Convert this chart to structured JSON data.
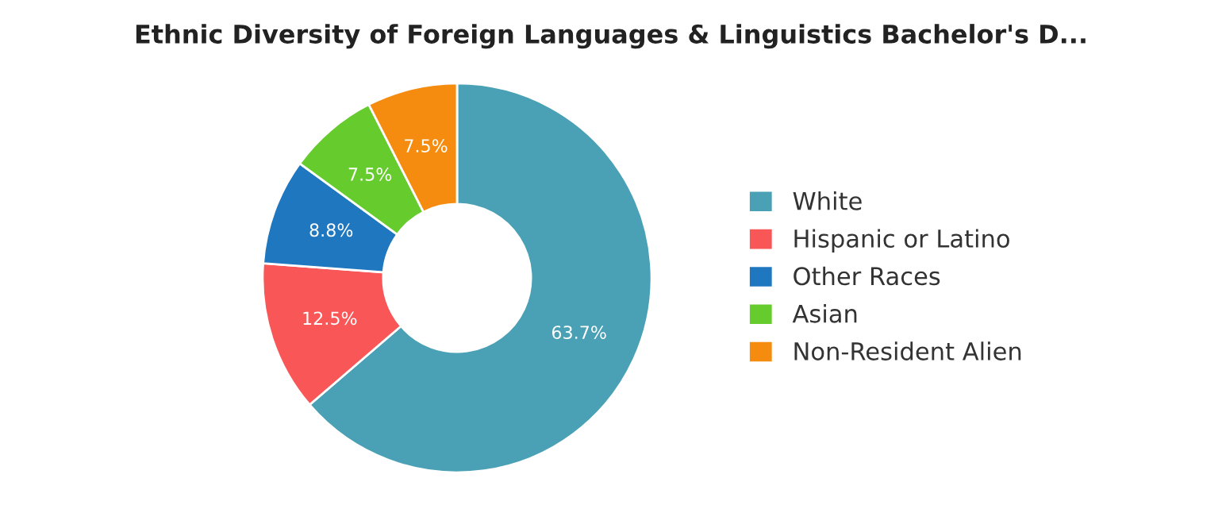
{
  "chart_data": {
    "type": "donut",
    "title": "Ethnic Diversity of Foreign Languages & Linguistics Bachelor's D...",
    "categories": [
      "White",
      "Hispanic or Latino",
      "Other Races",
      "Asian",
      "Non-Resident Alien"
    ],
    "values": [
      63.7,
      12.5,
      8.8,
      7.5,
      7.5
    ],
    "colors": [
      "#4aa0b5",
      "#f95757",
      "#1f77c0",
      "#66cc2e",
      "#f58c0f"
    ],
    "value_labels": [
      "63.7%",
      "12.5%",
      "8.8%",
      "7.5%",
      "7.5%"
    ],
    "legend": "right"
  }
}
